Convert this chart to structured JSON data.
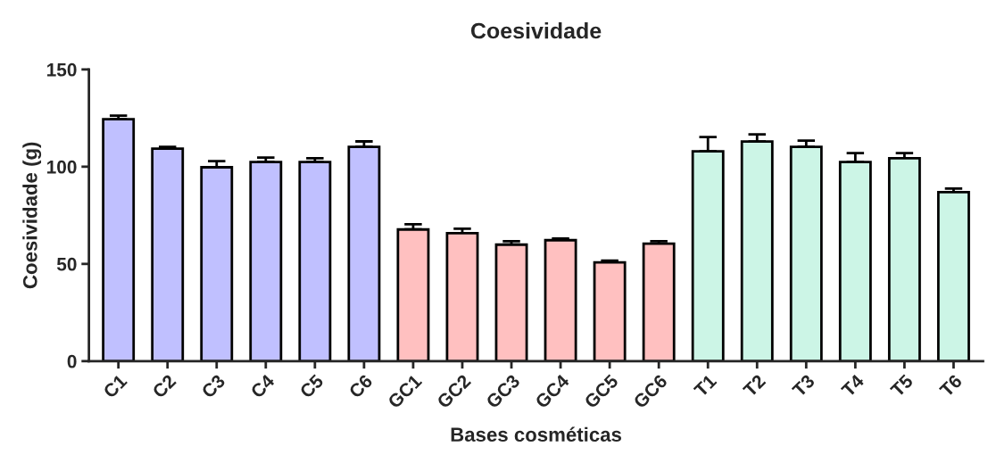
{
  "chart_data": {
    "type": "bar",
    "title": "Coesividade",
    "xlabel": "Bases cosméticas",
    "ylabel": "Coesividade (g)",
    "categories": [
      "C1",
      "C2",
      "C3",
      "C4",
      "C5",
      "C6",
      "GC1",
      "GC2",
      "GC3",
      "GC4",
      "GC5",
      "GC6",
      "T1",
      "T2",
      "T3",
      "T4",
      "T5",
      "T6"
    ],
    "values": [
      124.4,
      109.3,
      99.7,
      102.4,
      102.4,
      110.2,
      67.7,
      65.8,
      59.9,
      62.2,
      50.8,
      60.4,
      107.9,
      112.9,
      110.2,
      102.4,
      104.3,
      86.9
    ],
    "errors": [
      [
        124.4,
        126.2
      ],
      [
        109.3,
        110.2
      ],
      [
        99.7,
        102.9
      ],
      [
        102.4,
        104.7
      ],
      [
        102.4,
        104.3
      ],
      [
        110.2,
        113
      ],
      [
        67.7,
        70.4
      ],
      [
        65.8,
        68.1
      ],
      [
        59.9,
        61.7
      ],
      [
        62.2,
        63.1
      ],
      [
        50.8,
        51.7
      ],
      [
        60.4,
        61.7
      ],
      [
        107.9,
        115.2
      ],
      [
        112.9,
        116.6
      ],
      [
        110.2,
        113.4
      ],
      [
        102.4,
        107
      ],
      [
        104.3,
        107
      ],
      [
        86.9,
        88.7
      ]
    ],
    "colors": [
      "#c0c0ff",
      "#c0c0ff",
      "#c0c0ff",
      "#c0c0ff",
      "#c0c0ff",
      "#c0c0ff",
      "#ffc0c0",
      "#ffc0c0",
      "#ffc0c0",
      "#ffc0c0",
      "#ffc0c0",
      "#ffc0c0",
      "#ccf5e6",
      "#ccf5e6",
      "#ccf5e6",
      "#ccf5e6",
      "#ccf5e6",
      "#ccf5e6"
    ],
    "ylim": [
      0,
      150
    ],
    "yticks": [
      0,
      50,
      100,
      150
    ],
    "grid": false,
    "legend": false
  }
}
